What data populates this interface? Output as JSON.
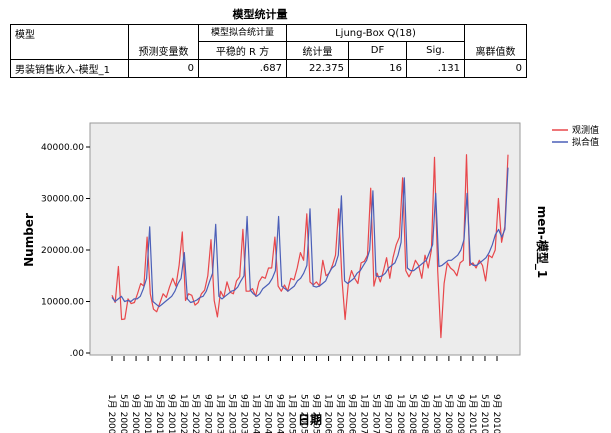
{
  "table": {
    "title": "模型统计量",
    "headers": {
      "model": "模型",
      "predictor_count": "预测变量数",
      "fit_stats": "模型拟合统计量",
      "stationary_r2": "平稳的 R 方",
      "ljung_box": "Ljung-Box Q(18)",
      "statistic": "统计量",
      "df": "DF",
      "sig": "Sig.",
      "outliers": "离群值数"
    },
    "row": {
      "model_name": "男装销售收入-模型_1",
      "predictor_count": "0",
      "stationary_r2": ".687",
      "statistic": "22.375",
      "df": "16",
      "sig": ".131",
      "outliers": "0"
    }
  },
  "chart_data": {
    "type": "line",
    "ylabel": "Number",
    "xlabel": "日期",
    "right_label": "men-模型_1",
    "ylim": [
      0,
      40000
    ],
    "yticks": [
      "40000.00",
      "30000.00",
      "20000.00",
      "10000.00",
      ".00"
    ],
    "x_labels": [
      "1月 2000",
      "5月 2000",
      "9月 2000",
      "1月 2001",
      "5月 2001",
      "9月 2001",
      "1月 2002",
      "5月 2002",
      "9月 2002",
      "1月 2003",
      "5月 2003",
      "9月 2003",
      "1月 2004",
      "5月 2004",
      "9月 2004",
      "1月 2005",
      "5月 2005",
      "9月 2005",
      "1月 2006",
      "5月 2006",
      "9月 2006",
      "1月 2007",
      "5月 2007",
      "9月 2007",
      "1月 2008",
      "5月 2008",
      "9月 2008",
      "1月 2009",
      "5月 2009",
      "9月 2009",
      "1月 2010",
      "5月 2010",
      "9月 2010"
    ],
    "series": [
      {
        "name": "观测值",
        "color": "#e8474b",
        "values": [
          11200,
          9800,
          16800,
          6500,
          6600,
          10500,
          9600,
          9800,
          11500,
          13500,
          13000,
          22500,
          11500,
          8500,
          8000,
          9700,
          11500,
          10800,
          12800,
          14500,
          13000,
          17000,
          23500,
          10200,
          11500,
          11200,
          9300,
          9800,
          11500,
          12200,
          15000,
          22000,
          10200,
          7000,
          12000,
          10800,
          13800,
          11800,
          11500,
          14000,
          14800,
          24000,
          12000,
          12000,
          12500,
          11000,
          13800,
          14800,
          14500,
          16500,
          16500,
          22500,
          13000,
          12000,
          13200,
          12000,
          14500,
          14200,
          16500,
          19500,
          18000,
          27000,
          13800,
          13200,
          13800,
          13000,
          18000,
          15000,
          15500,
          17000,
          19000,
          28000,
          14500,
          6500,
          13500,
          16000,
          14500,
          13500,
          17500,
          17800,
          19000,
          32000,
          13000,
          15500,
          13800,
          16000,
          18500,
          14500,
          18500,
          21000,
          22500,
          34000,
          16000,
          14800,
          16000,
          18000,
          17000,
          14500,
          19000,
          16500,
          20000,
          38000,
          16000,
          3000,
          13500,
          17500,
          16500,
          16000,
          15000,
          17500,
          18000,
          38500,
          17000,
          17500,
          16500,
          18000,
          17000,
          14000,
          19000,
          18500,
          20000,
          30000,
          21500,
          24500,
          38500
        ]
      },
      {
        "name": "拟合值",
        "color": "#4b5fb8",
        "values": [
          10800,
          10000,
          10500,
          11000,
          10000,
          10200,
          10000,
          10500,
          10500,
          11000,
          12500,
          14500,
          24500,
          10000,
          9500,
          9000,
          9500,
          10000,
          10500,
          11000,
          12000,
          13500,
          14500,
          19500,
          10500,
          9800,
          10000,
          10300,
          10800,
          11000,
          12000,
          13800,
          15500,
          25000,
          11000,
          10500,
          11000,
          11500,
          12000,
          12200,
          12800,
          14000,
          15000,
          26500,
          12200,
          11500,
          11000,
          11500,
          12500,
          13000,
          13500,
          14500,
          16000,
          26500,
          13000,
          12500,
          12000,
          12500,
          13000,
          14000,
          14500,
          15500,
          17000,
          28000,
          13000,
          12800,
          13000,
          13500,
          14000,
          15500,
          16500,
          17000,
          19000,
          30500,
          14000,
          13500,
          14000,
          14500,
          15500,
          16000,
          17000,
          18000,
          20000,
          31500,
          15000,
          14800,
          15000,
          15500,
          16500,
          17000,
          17500,
          19000,
          21500,
          34000,
          16500,
          16000,
          16000,
          16500,
          17000,
          17500,
          18000,
          19500,
          21000,
          31000,
          16800,
          17000,
          17500,
          18000,
          18000,
          18500,
          19000,
          20000,
          22000,
          31000,
          17500,
          17000,
          17000,
          17500,
          18000,
          18500,
          19500,
          21000,
          23000,
          24000,
          22500,
          24000,
          36000
        ]
      }
    ],
    "legend_position": "top-right",
    "grid": false
  }
}
